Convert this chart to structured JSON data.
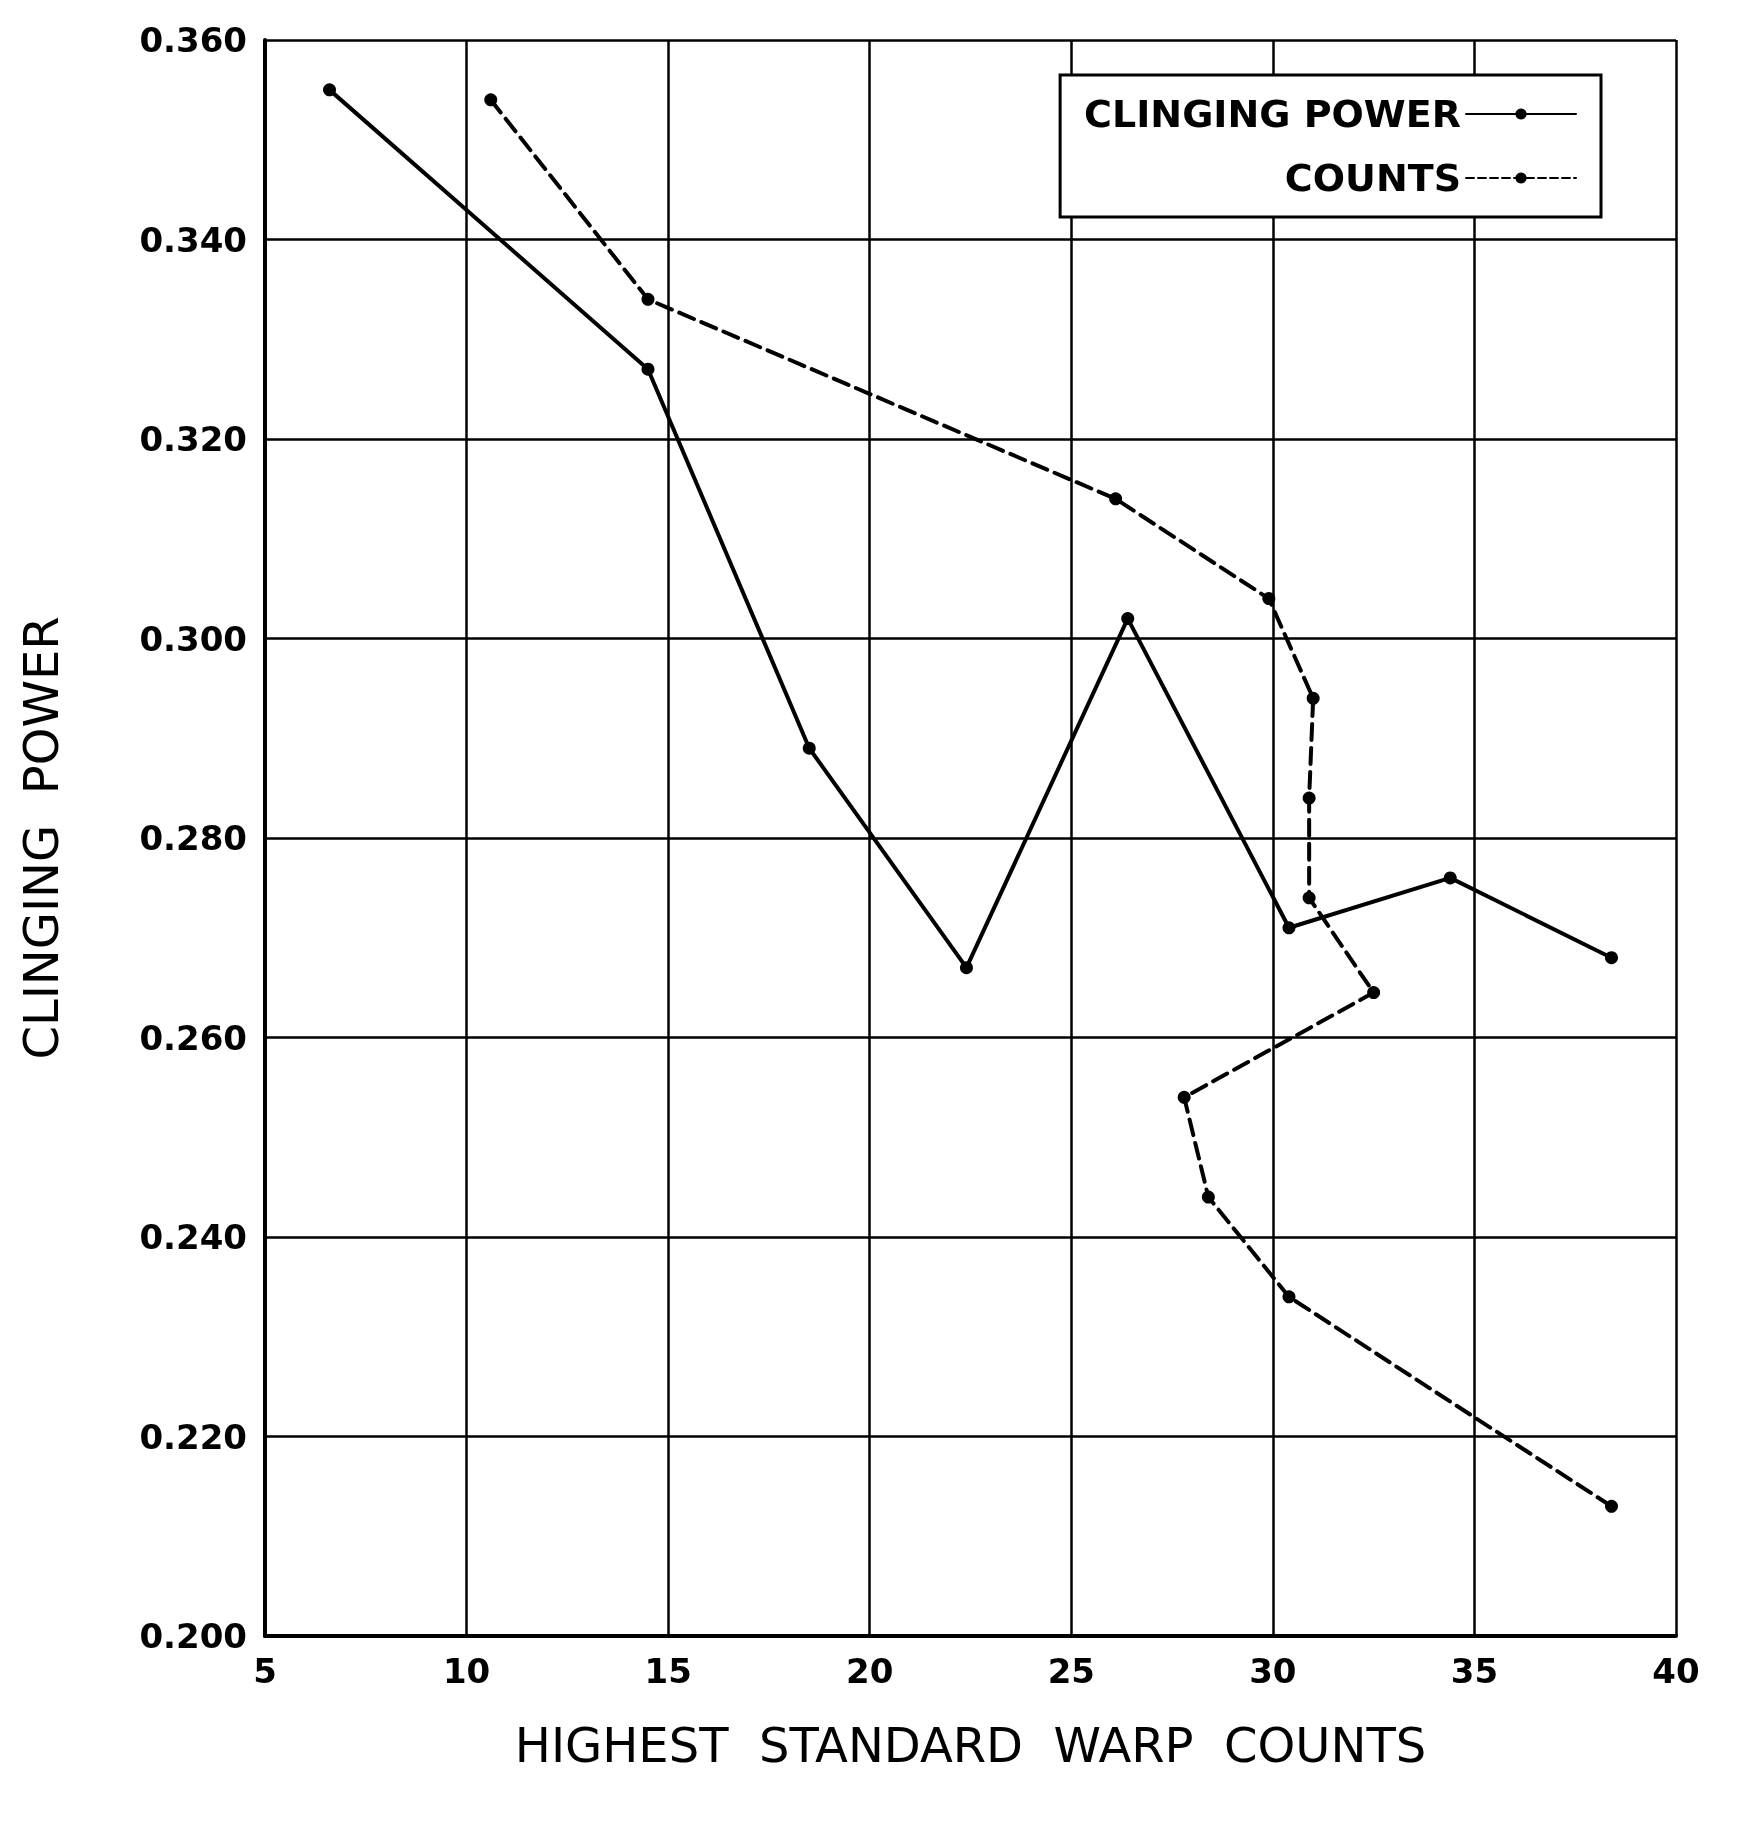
{
  "chart_data": {
    "type": "line",
    "xlabel": "HIGHEST  STANDARD  WARP  COUNTS",
    "ylabel": "CLINGING  POWER",
    "xlim": [
      5,
      40
    ],
    "xticks": [
      5,
      10,
      15,
      20,
      25,
      30,
      35,
      40
    ],
    "ylim": [
      0.2,
      0.36
    ],
    "yticks": [
      {
        "value": 0.2,
        "label": "0.200"
      },
      {
        "value": 0.22,
        "label": "0.220"
      },
      {
        "value": 0.24,
        "label": "0.240"
      },
      {
        "value": 0.26,
        "label": "0.260"
      },
      {
        "value": 0.28,
        "label": "0.280"
      },
      {
        "value": 0.3,
        "label": "0.300"
      },
      {
        "value": 0.32,
        "label": "0.320"
      },
      {
        "value": 0.34,
        "label": "0.340"
      },
      {
        "value": 0.36,
        "label": "0.360"
      }
    ],
    "grid": true,
    "legend": "top right",
    "marker": "circle",
    "series": [
      {
        "name": "CLINGING POWER",
        "color": "#000000",
        "line_style": "solid",
        "x": [
          6.6,
          14.5,
          18.5,
          22.4,
          26.4,
          30.4,
          34.4,
          38.4
        ],
        "values": [
          0.355,
          0.327,
          0.289,
          0.267,
          0.302,
          0.271,
          0.276,
          0.268
        ]
      },
      {
        "name": "COUNTS",
        "color": "#000000",
        "line_style": "dashed",
        "x": [
          10.6,
          14.5,
          26.1,
          29.9,
          31.0,
          30.9,
          30.9,
          32.5,
          27.8,
          28.4,
          30.4,
          38.4
        ],
        "values": [
          0.354,
          0.334,
          0.314,
          0.304,
          0.294,
          0.284,
          0.274,
          0.2645,
          0.254,
          0.244,
          0.234,
          0.213
        ]
      }
    ]
  }
}
